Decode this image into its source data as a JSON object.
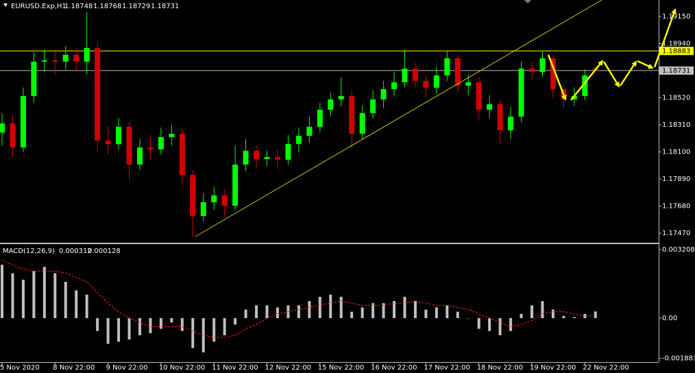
{
  "chart_data": [
    {
      "type": "candlestick",
      "title": "EURUSD.Exp,H1",
      "bull_color": "#00ff00",
      "bear_color": "#d40000",
      "categories": [
        "5 Nov 2020",
        null,
        null,
        null,
        null,
        "8 Nov 22:00",
        null,
        null,
        null,
        null,
        "9 Nov 22:00",
        null,
        null,
        null,
        null,
        "10 Nov 22:00",
        null,
        null,
        null,
        null,
        "11 Nov 22:00",
        null,
        null,
        null,
        null,
        "12 Nov 22:00",
        null,
        null,
        null,
        null,
        "15 Nov 22:00",
        null,
        null,
        null,
        null,
        "16 Nov 22:00",
        null,
        null,
        null,
        null,
        "17 Nov 22:00",
        null,
        null,
        null,
        null,
        "18 Nov 22:00",
        null,
        null,
        null,
        null,
        "19 Nov 22:00",
        null,
        null,
        null,
        null,
        "22 Nov 22:00",
        null
      ],
      "ohlc": [
        [
          1.1825,
          1.184,
          1.1815,
          1.18321
        ],
        [
          1.18321,
          1.1838,
          1.1806,
          1.18135
        ],
        [
          1.18135,
          1.186,
          1.181,
          1.18534
        ],
        [
          1.18534,
          1.1887,
          1.1848,
          1.188
        ],
        [
          1.188,
          1.1889,
          1.1872,
          1.1881
        ],
        [
          1.1881,
          1.1888,
          1.187,
          1.188
        ],
        [
          1.188,
          1.1892,
          1.1874,
          1.18853
        ],
        [
          1.18853,
          1.189,
          1.1872,
          1.188
        ],
        [
          1.188,
          1.19182,
          1.187,
          1.18906
        ],
        [
          1.18906,
          1.1895,
          1.181,
          1.18188
        ],
        [
          1.18188,
          1.183,
          1.1808,
          1.1816
        ],
        [
          1.1816,
          1.1836,
          1.1812,
          1.18295
        ],
        [
          1.18295,
          1.1833,
          1.1789,
          1.18002
        ],
        [
          1.18002,
          1.182,
          1.1796,
          1.18135
        ],
        [
          1.18135,
          1.1823,
          1.1804,
          1.1812
        ],
        [
          1.1812,
          1.1829,
          1.1808,
          1.18215
        ],
        [
          1.18215,
          1.1831,
          1.1815,
          1.18241
        ],
        [
          1.18241,
          1.1828,
          1.1785,
          1.17922
        ],
        [
          1.17922,
          1.1796,
          1.17438,
          1.17603
        ],
        [
          1.17603,
          1.1778,
          1.1756,
          1.1771
        ],
        [
          1.1771,
          1.1783,
          1.1765,
          1.17763
        ],
        [
          1.17763,
          1.1781,
          1.176,
          1.17683
        ],
        [
          1.17683,
          1.1815,
          1.1765,
          1.18002
        ],
        [
          1.18002,
          1.182,
          1.1795,
          1.18109
        ],
        [
          1.18109,
          1.1815,
          1.1798,
          1.18045
        ],
        [
          1.18045,
          1.1811,
          1.1799,
          1.1806
        ],
        [
          1.1806,
          1.1812,
          1.1797,
          1.1804
        ],
        [
          1.1804,
          1.1823,
          1.18,
          1.18162
        ],
        [
          1.18162,
          1.1829,
          1.181,
          1.18225
        ],
        [
          1.18225,
          1.1838,
          1.1817,
          1.18295
        ],
        [
          1.18295,
          1.1848,
          1.1825,
          1.18427
        ],
        [
          1.18427,
          1.1856,
          1.1838,
          1.18507
        ],
        [
          1.18507,
          1.1868,
          1.1845,
          1.18534
        ],
        [
          1.18534,
          1.1858,
          1.1813,
          1.18241
        ],
        [
          1.18241,
          1.1846,
          1.182,
          1.18401
        ],
        [
          1.18401,
          1.1858,
          1.1836,
          1.18507
        ],
        [
          1.18507,
          1.1865,
          1.1844,
          1.18587
        ],
        [
          1.18587,
          1.1872,
          1.1853,
          1.1864
        ],
        [
          1.1864,
          1.1889,
          1.186,
          1.18746
        ],
        [
          1.18746,
          1.1879,
          1.186,
          1.18651
        ],
        [
          1.18651,
          1.187,
          1.1852,
          1.18598
        ],
        [
          1.18598,
          1.1876,
          1.1855,
          1.18693
        ],
        [
          1.18693,
          1.1888,
          1.1865,
          1.18826
        ],
        [
          1.18826,
          1.1885,
          1.1856,
          1.18614
        ],
        [
          1.18614,
          1.187,
          1.1854,
          1.1864
        ],
        [
          1.1864,
          1.1868,
          1.1835,
          1.18427
        ],
        [
          1.18427,
          1.1854,
          1.1836,
          1.1847
        ],
        [
          1.1847,
          1.185,
          1.1816,
          1.18268
        ],
        [
          1.18268,
          1.1845,
          1.182,
          1.18374
        ],
        [
          1.18374,
          1.188,
          1.1833,
          1.18746
        ],
        [
          1.18746,
          1.188,
          1.1866,
          1.1872
        ],
        [
          1.1872,
          1.1888,
          1.1868,
          1.18826
        ],
        [
          1.18826,
          1.1885,
          1.1852,
          1.18587
        ],
        [
          1.18587,
          1.1862,
          1.1844,
          1.18507
        ],
        [
          1.18507,
          1.186,
          1.1846,
          1.18534
        ],
        [
          1.18534,
          1.1874,
          1.185,
          1.18693
        ],
        [
          1.18748,
          1.18768,
          1.18729,
          1.18731
        ]
      ],
      "ylim": [
        1.17396,
        1.19278
      ],
      "yticks": [
        {
          "value": 1.1915,
          "label": "1.19150"
        },
        {
          "value": 1.1894,
          "label": "1.18940"
        },
        {
          "value": 1.1852,
          "label": "1.18520"
        },
        {
          "value": 1.1831,
          "label": "1.18310"
        },
        {
          "value": 1.181,
          "label": "1.18100"
        },
        {
          "value": 1.1789,
          "label": "1.17890"
        },
        {
          "value": 1.1768,
          "label": "1.17680"
        },
        {
          "value": 1.1747,
          "label": "1.17470"
        }
      ],
      "hlines": [
        {
          "value": 1.18883,
          "color": "#ffff00"
        },
        {
          "value": 1.18731,
          "color": "#c0c0c0"
        }
      ]
    },
    {
      "type": "macd",
      "title": "MACD(12,26,9)",
      "hist_color": "#c0c0c0",
      "signal_color": "#ff2020",
      "histogram": [
        0.0025,
        0.0021,
        0.0018,
        0.0022,
        0.0024,
        0.0021,
        0.0017,
        0.0013,
        0.0011,
        -0.0006,
        -0.0012,
        -0.0011,
        -0.001,
        -0.0008,
        -0.0007,
        -0.0005,
        -0.0002,
        -0.0006,
        -0.0014,
        -0.0016,
        -0.0011,
        -0.0008,
        -0.0003,
        0.0004,
        0.0006,
        0.0006,
        0.0005,
        0.0006,
        0.0006,
        0.0008,
        0.001,
        0.0011,
        0.001,
        0.0003,
        0.0005,
        0.0007,
        0.0007,
        0.0008,
        0.001,
        0.0008,
        0.0004,
        0.0005,
        0.0006,
        0.0003,
        0,
        -0.0005,
        -0.0006,
        -0.0008,
        -0.0006,
        0.0002,
        0.0006,
        0.0008,
        0.0004,
        0.0001,
        5e-05,
        0.0002,
        0.000312
      ],
      "signal": [
        0.0027,
        0.0025,
        0.0023,
        0.0022,
        0.0022,
        0.0022,
        0.0021,
        0.0019,
        0.0017,
        0.0012,
        0.0007,
        0.0003,
        0,
        -0.0002,
        -0.0004,
        -0.0004,
        -0.0004,
        -0.0004,
        -0.0006,
        -0.0008,
        -0.0009,
        -0.0009,
        -0.0008,
        -0.0005,
        -0.0003,
        0,
        0.0002,
        0.0003,
        0.0004,
        0.0005,
        0.0006,
        0.0007,
        0.0008,
        0.0007,
        0.0006,
        0.0006,
        0.0006,
        0.0007,
        0.0007,
        0.0008,
        0.0007,
        0.0006,
        0.0006,
        0.0005,
        0.0004,
        0.0002,
        0,
        -0.0002,
        -0.0004,
        -0.0003,
        -0.0001,
        0.0002,
        0.0003,
        0.0003,
        0.0002,
        0.0001,
        0.000128
      ],
      "ylim": [
        -0.002053,
        0.003433
      ],
      "yticks": [
        0.003208,
        {
          "value": 0,
          "label": "0.00"
        },
        -0.001883
      ]
    }
  ]
}
